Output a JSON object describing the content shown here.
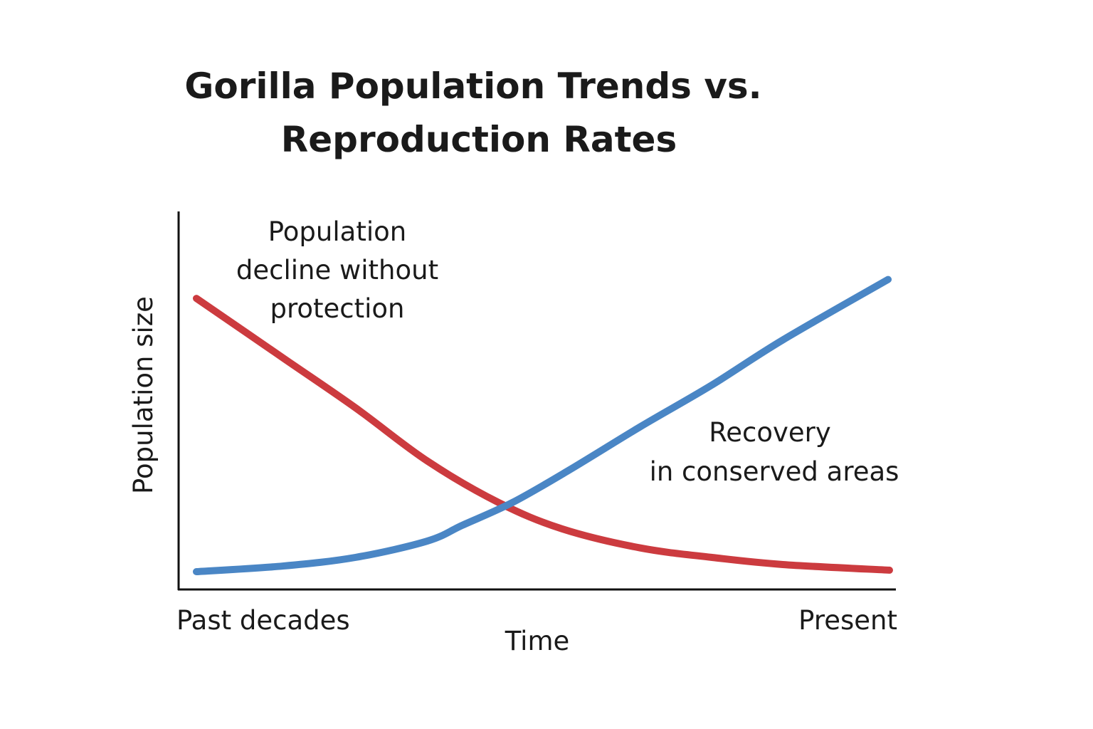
{
  "chart_data": {
    "type": "line",
    "title": [
      "Gorilla Population Trends vs.",
      "Reproduction Rates"
    ],
    "xlabel": "Time",
    "ylabel": "Population size",
    "x_tick_labels": [
      "Past decades",
      "Present"
    ],
    "xlim": [
      0,
      100
    ],
    "ylim": [
      0,
      100
    ],
    "grid": false,
    "series": [
      {
        "color": "#cc3b3f",
        "x": [
          0,
          12.7,
          23,
          33.3,
          43.6,
          52.8,
          64,
          74.3,
          84.6,
          100
        ],
        "y": [
          77,
          61,
          48,
          34,
          23,
          16,
          11,
          8.5,
          6.6,
          5.1
        ]
      },
      {
        "color": "#4a86c5",
        "x": [
          0,
          12.5,
          23,
          33.3,
          38.4,
          45.6,
          53.8,
          64,
          74.3,
          84.6,
          99.8
        ],
        "y": [
          4.7,
          6.2,
          8.5,
          12.8,
          17,
          23,
          31.6,
          43,
          54,
          66,
          82
        ]
      }
    ],
    "annotations": [
      {
        "lines": [
          "Population",
          "decline without",
          "protection"
        ]
      },
      {
        "lines": [
          "Recovery",
          "in conserved areas"
        ]
      }
    ]
  }
}
